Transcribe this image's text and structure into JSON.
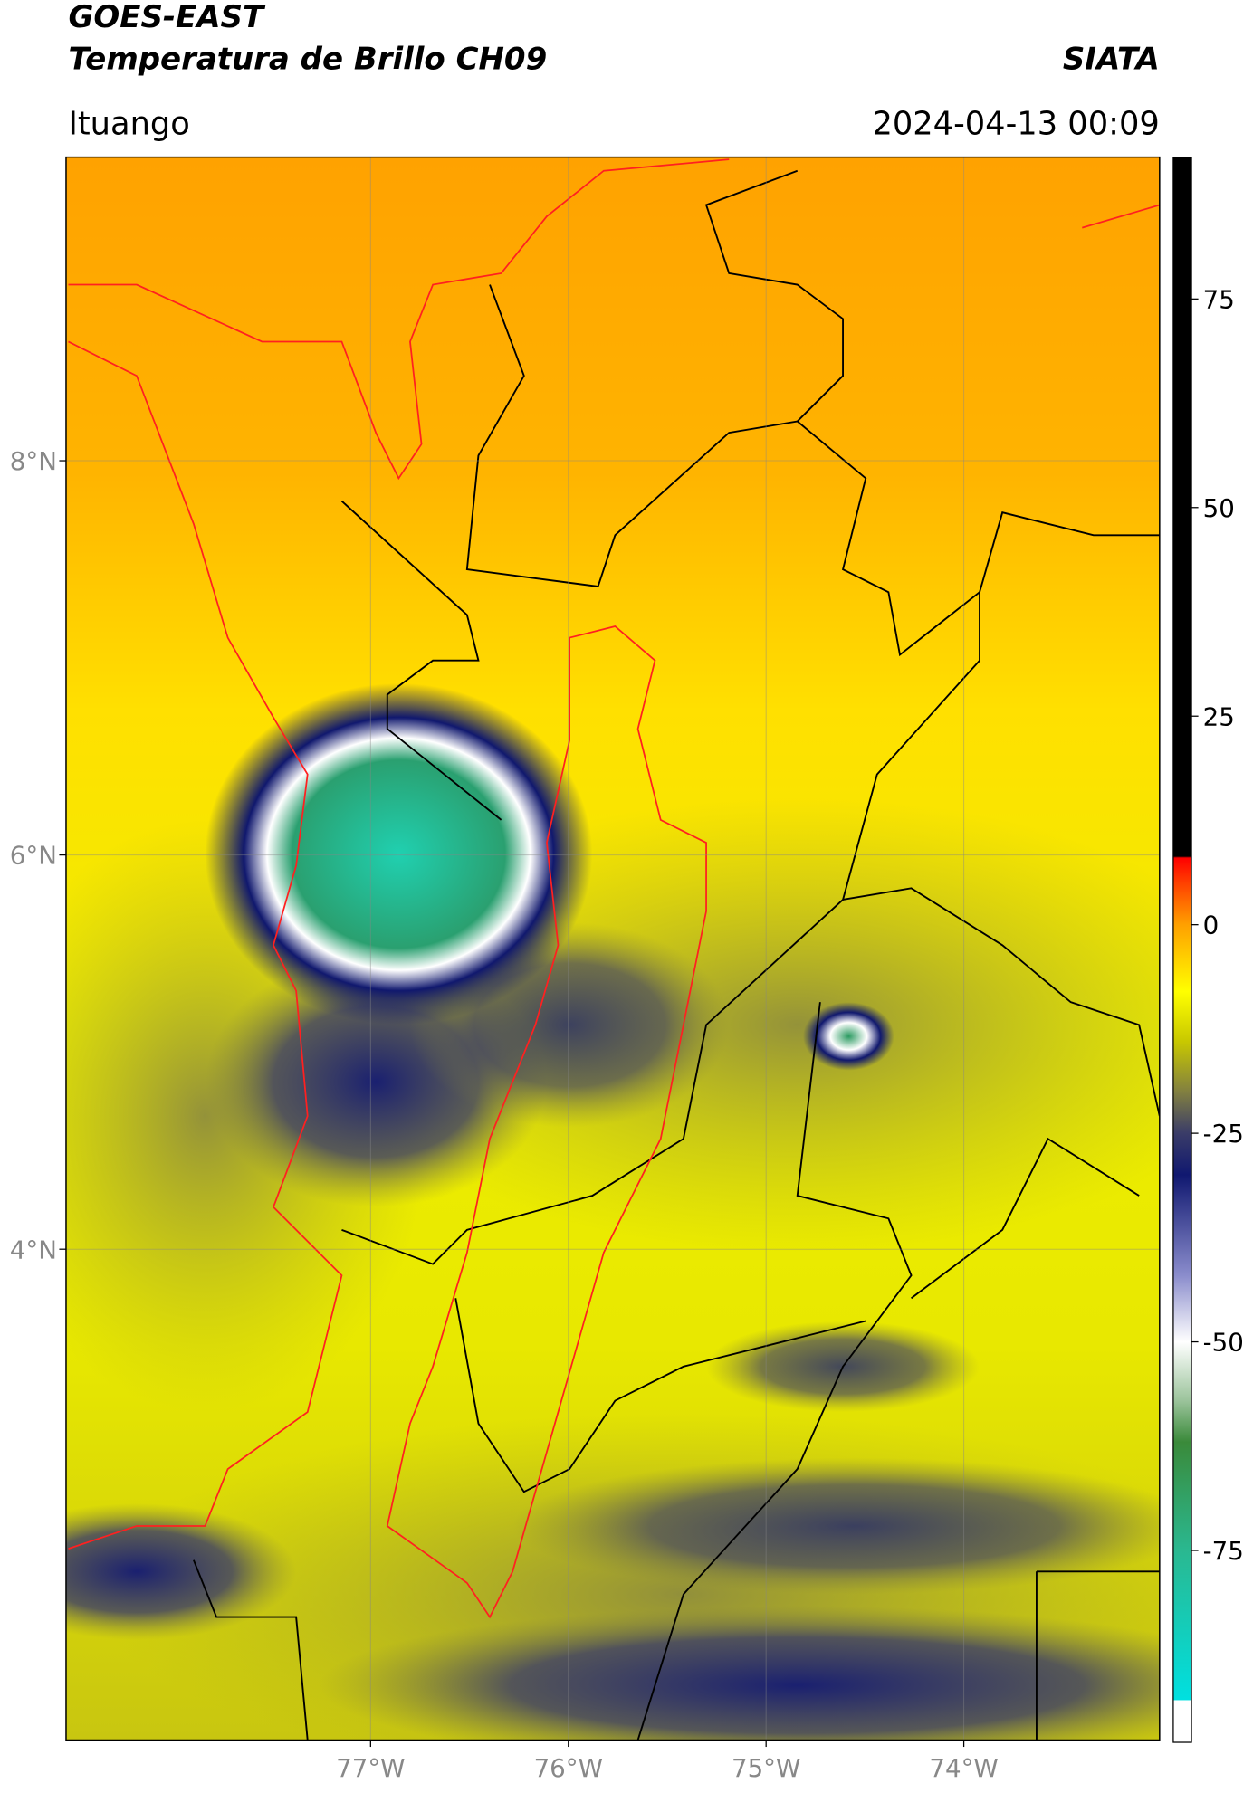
{
  "header": {
    "title": "GOES-EAST",
    "subtitle": "Temperatura de Brillo CH09",
    "source": "SIATA",
    "location": "Ituango",
    "datetime": "2024-04-13 00:09"
  },
  "map": {
    "xlim": [
      -78.54,
      -73.01
    ],
    "ylim": [
      1.51,
      9.54
    ],
    "xticks": [
      {
        "value": -77,
        "label": "77°W"
      },
      {
        "value": -76,
        "label": "76°W"
      },
      {
        "value": -75,
        "label": "75°W"
      },
      {
        "value": -74,
        "label": "74°W"
      }
    ],
    "yticks": [
      {
        "value": 8,
        "label": "8°N"
      },
      {
        "value": 6,
        "label": "6°N"
      },
      {
        "value": 4,
        "label": "4°N"
      }
    ],
    "grid": true
  },
  "colorbar": {
    "clim": [
      -98,
      92
    ],
    "ticks": [
      75,
      50,
      25,
      0,
      -25,
      -50,
      -75
    ],
    "stops": [
      {
        "value": -98,
        "color": "#ffffff"
      },
      {
        "value": -93,
        "color": "#ffffff"
      },
      {
        "value": -92.9,
        "color": "#00e0e0"
      },
      {
        "value": -75,
        "color": "#2ab890"
      },
      {
        "value": -62,
        "color": "#3a8a3a"
      },
      {
        "value": -57,
        "color": "#9cc49c"
      },
      {
        "value": -50,
        "color": "#ffffff"
      },
      {
        "value": -42,
        "color": "#8a8ccc"
      },
      {
        "value": -30,
        "color": "#101870"
      },
      {
        "value": -25,
        "color": "#3a3c68"
      },
      {
        "value": -20,
        "color": "#828040"
      },
      {
        "value": -14,
        "color": "#c8c800"
      },
      {
        "value": -8,
        "color": "#ffff00"
      },
      {
        "value": 0,
        "color": "#ffa000"
      },
      {
        "value": 5,
        "color": "#ff4000"
      },
      {
        "value": 8,
        "color": "#ff0000"
      },
      {
        "value": 8.2,
        "color": "#000000"
      },
      {
        "value": 92,
        "color": "#000000"
      }
    ]
  }
}
